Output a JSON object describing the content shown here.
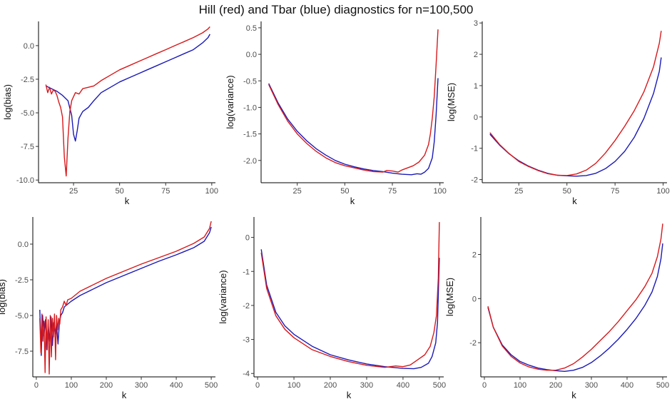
{
  "title": "Hill (red) and Tbar (blue) diagnostics for n=100,500",
  "colors": {
    "hill": "#d7191c",
    "tbar": "#1a1ab8"
  },
  "chart_data": [
    {
      "type": "line",
      "xlabel": "k",
      "ylabel": "log(bias)",
      "xlim": [
        6,
        102
      ],
      "ylim": [
        -10.2,
        1.8
      ],
      "xticks": [
        25,
        50,
        75,
        100
      ],
      "xtick_labels": [
        "25",
        "50",
        "75",
        "100"
      ],
      "yticks": [
        -10,
        -7.5,
        -5,
        -2.5,
        0
      ],
      "ytick_labels": [
        "-10.0",
        "-7.5",
        "-5.0",
        "-2.5",
        "0.0"
      ],
      "series": [
        {
          "name": "Tbar",
          "color": "#1a1ab8",
          "x": [
            10,
            13,
            16,
            19,
            22,
            24,
            25,
            26,
            27,
            28,
            30,
            33,
            36,
            40,
            45,
            50,
            55,
            60,
            65,
            70,
            75,
            80,
            85,
            90,
            95,
            98,
            99
          ],
          "y": [
            -3.0,
            -3.2,
            -3.4,
            -3.7,
            -4.1,
            -5.2,
            -6.6,
            -7.1,
            -6.3,
            -5.4,
            -4.9,
            -4.6,
            -4.1,
            -3.5,
            -3.1,
            -2.7,
            -2.4,
            -2.1,
            -1.8,
            -1.5,
            -1.2,
            -0.9,
            -0.6,
            -0.3,
            0.2,
            0.6,
            0.85
          ]
        },
        {
          "name": "Hill",
          "color": "#d7191c",
          "x": [
            10,
            11,
            12,
            13,
            14,
            15,
            16,
            17,
            18,
            19,
            20,
            21,
            22,
            23,
            24,
            26,
            28,
            30,
            33,
            36,
            40,
            45,
            50,
            55,
            60,
            65,
            70,
            75,
            80,
            85,
            90,
            95,
            98,
            99
          ],
          "y": [
            -2.9,
            -3.5,
            -3.1,
            -3.6,
            -3.3,
            -3.4,
            -3.7,
            -4.2,
            -4.6,
            -5.3,
            -8.3,
            -9.7,
            -6.9,
            -4.9,
            -4.1,
            -3.5,
            -3.6,
            -3.2,
            -3.1,
            -3.0,
            -2.6,
            -2.2,
            -1.8,
            -1.5,
            -1.2,
            -0.9,
            -0.6,
            -0.3,
            0.0,
            0.3,
            0.6,
            0.95,
            1.25,
            1.4
          ]
        }
      ]
    },
    {
      "type": "line",
      "xlabel": "k",
      "ylabel": "log(variance)",
      "xlim": [
        6,
        102
      ],
      "ylim": [
        -2.42,
        0.62
      ],
      "xticks": [
        25,
        50,
        75,
        100
      ],
      "xtick_labels": [
        "25",
        "50",
        "75",
        "100"
      ],
      "yticks": [
        -2.0,
        -1.5,
        -1.0,
        -0.5,
        0.0,
        0.5
      ],
      "ytick_labels": [
        "-2.0",
        "-1.5",
        "-1.0",
        "-0.5",
        "0.0",
        "0.5"
      ],
      "series": [
        {
          "name": "Tbar",
          "color": "#1a1ab8",
          "x": [
            10,
            15,
            20,
            25,
            30,
            35,
            40,
            45,
            50,
            55,
            60,
            65,
            70,
            75,
            80,
            85,
            88,
            90,
            92,
            94,
            96,
            97,
            98,
            99
          ],
          "y": [
            -0.55,
            -0.92,
            -1.22,
            -1.45,
            -1.63,
            -1.78,
            -1.9,
            -2.0,
            -2.07,
            -2.12,
            -2.16,
            -2.19,
            -2.21,
            -2.24,
            -2.26,
            -2.27,
            -2.25,
            -2.26,
            -2.22,
            -2.15,
            -1.95,
            -1.65,
            -1.15,
            -0.45
          ]
        },
        {
          "name": "Hill",
          "color": "#d7191c",
          "x": [
            10,
            15,
            20,
            25,
            30,
            35,
            40,
            45,
            50,
            55,
            60,
            65,
            70,
            72,
            75,
            78,
            80,
            83,
            86,
            89,
            92,
            94,
            95,
            96,
            97,
            98,
            99
          ],
          "y": [
            -0.57,
            -0.95,
            -1.26,
            -1.5,
            -1.68,
            -1.83,
            -1.95,
            -2.04,
            -2.1,
            -2.14,
            -2.18,
            -2.21,
            -2.22,
            -2.19,
            -2.2,
            -2.22,
            -2.18,
            -2.14,
            -2.1,
            -2.03,
            -1.9,
            -1.7,
            -1.5,
            -1.2,
            -0.8,
            -0.2,
            0.47
          ]
        }
      ]
    },
    {
      "type": "line",
      "xlabel": "k",
      "ylabel": "log(MSE)",
      "xlim": [
        6,
        102
      ],
      "ylim": [
        -2.1,
        3.05
      ],
      "xticks": [
        25,
        50,
        75,
        100
      ],
      "xtick_labels": [
        "25",
        "50",
        "75",
        "100"
      ],
      "yticks": [
        -2,
        -1,
        0,
        1,
        2,
        3
      ],
      "ytick_labels": [
        "-2",
        "-1",
        "0",
        "1",
        "2",
        "3"
      ],
      "series": [
        {
          "name": "Tbar",
          "color": "#1a1ab8",
          "x": [
            10,
            15,
            20,
            25,
            30,
            35,
            40,
            45,
            50,
            55,
            60,
            65,
            70,
            75,
            80,
            85,
            90,
            95,
            98,
            99
          ],
          "y": [
            -0.55,
            -0.9,
            -1.18,
            -1.4,
            -1.57,
            -1.7,
            -1.8,
            -1.86,
            -1.88,
            -1.89,
            -1.87,
            -1.8,
            -1.65,
            -1.42,
            -1.1,
            -0.65,
            -0.05,
            0.75,
            1.45,
            1.9
          ]
        },
        {
          "name": "Hill",
          "color": "#d7191c",
          "x": [
            10,
            15,
            20,
            25,
            30,
            35,
            40,
            45,
            50,
            55,
            60,
            65,
            70,
            75,
            80,
            85,
            90,
            95,
            98,
            99
          ],
          "y": [
            -0.5,
            -0.88,
            -1.17,
            -1.42,
            -1.58,
            -1.71,
            -1.81,
            -1.86,
            -1.87,
            -1.82,
            -1.7,
            -1.48,
            -1.15,
            -0.75,
            -0.3,
            0.2,
            0.8,
            1.6,
            2.35,
            2.75
          ]
        }
      ]
    },
    {
      "type": "line",
      "xlabel": "k",
      "ylabel": "log(bias)",
      "xlim": [
        -10,
        512
      ],
      "ylim": [
        -9.3,
        1.9
      ],
      "xticks": [
        0,
        100,
        200,
        300,
        400,
        500
      ],
      "xtick_labels": [
        "0",
        "100",
        "200",
        "300",
        "400",
        "500"
      ],
      "yticks": [
        -7.5,
        -5.0,
        -2.5,
        0.0
      ],
      "ytick_labels": [
        "-7.5",
        "-5.0",
        "-2.5",
        "0.0"
      ],
      "series": [
        {
          "name": "Tbar",
          "color": "#1a1ab8",
          "x": [
            10,
            14,
            18,
            22,
            26,
            30,
            34,
            38,
            42,
            46,
            50,
            54,
            58,
            62,
            66,
            70,
            75,
            80,
            90,
            100,
            125,
            150,
            200,
            250,
            300,
            350,
            400,
            450,
            480,
            495,
            500
          ],
          "y": [
            -4.6,
            -7.8,
            -5.0,
            -6.4,
            -5.3,
            -7.4,
            -5.6,
            -6.8,
            -5.1,
            -7.1,
            -5.5,
            -6.3,
            -5.6,
            -7.0,
            -5.5,
            -5.0,
            -4.8,
            -4.4,
            -4.2,
            -4.0,
            -3.6,
            -3.3,
            -2.7,
            -2.2,
            -1.7,
            -1.2,
            -0.75,
            -0.25,
            0.2,
            0.8,
            1.2
          ]
        },
        {
          "name": "Hill",
          "color": "#d7191c",
          "x": [
            10,
            13,
            16,
            19,
            22,
            25,
            28,
            31,
            34,
            37,
            40,
            43,
            46,
            49,
            52,
            55,
            58,
            61,
            64,
            67,
            70,
            75,
            80,
            85,
            90,
            100,
            125,
            150,
            200,
            250,
            300,
            350,
            400,
            450,
            480,
            495,
            500
          ],
          "y": [
            -5.2,
            -7.6,
            -4.9,
            -6.8,
            -5.4,
            -9.0,
            -5.1,
            -7.4,
            -5.3,
            -9.1,
            -5.0,
            -7.9,
            -5.2,
            -6.5,
            -4.9,
            -8.1,
            -5.0,
            -6.0,
            -5.2,
            -5.6,
            -4.6,
            -4.4,
            -4.0,
            -4.3,
            -3.9,
            -3.8,
            -3.3,
            -3.0,
            -2.4,
            -1.9,
            -1.4,
            -0.95,
            -0.5,
            0.05,
            0.5,
            1.1,
            1.6
          ]
        }
      ]
    },
    {
      "type": "line",
      "xlabel": "k",
      "ylabel": "log(variance)",
      "xlim": [
        -10,
        512
      ],
      "ylim": [
        -4.1,
        0.6
      ],
      "xticks": [
        0,
        100,
        200,
        300,
        400,
        500
      ],
      "xtick_labels": [
        "0",
        "100",
        "200",
        "300",
        "400",
        "500"
      ],
      "yticks": [
        -4,
        -3,
        -2,
        -1,
        0
      ],
      "ytick_labels": [
        "-4",
        "-3",
        "-2",
        "-1",
        "0"
      ],
      "series": [
        {
          "name": "Tbar",
          "color": "#1a1ab8",
          "x": [
            10,
            25,
            50,
            75,
            100,
            150,
            200,
            250,
            300,
            350,
            400,
            430,
            450,
            470,
            480,
            490,
            495,
            500
          ],
          "y": [
            -0.35,
            -1.4,
            -2.2,
            -2.6,
            -2.85,
            -3.2,
            -3.45,
            -3.6,
            -3.72,
            -3.8,
            -3.85,
            -3.86,
            -3.82,
            -3.7,
            -3.5,
            -3.1,
            -2.5,
            -0.6
          ]
        },
        {
          "name": "Hill",
          "color": "#d7191c",
          "x": [
            10,
            25,
            50,
            75,
            100,
            150,
            200,
            250,
            300,
            350,
            380,
            400,
            420,
            440,
            460,
            475,
            485,
            492,
            497,
            500
          ],
          "y": [
            -0.45,
            -1.5,
            -2.3,
            -2.7,
            -2.95,
            -3.3,
            -3.5,
            -3.65,
            -3.76,
            -3.82,
            -3.78,
            -3.8,
            -3.75,
            -3.6,
            -3.45,
            -3.2,
            -2.8,
            -2.3,
            -1.2,
            0.45
          ]
        }
      ]
    },
    {
      "type": "line",
      "xlabel": "k",
      "ylabel": "log(MSE)",
      "xlim": [
        -10,
        512
      ],
      "ylim": [
        -3.55,
        3.7
      ],
      "xticks": [
        0,
        100,
        200,
        300,
        400,
        500
      ],
      "xtick_labels": [
        "0",
        "100",
        "200",
        "300",
        "400",
        "500"
      ],
      "yticks": [
        -2,
        0,
        2
      ],
      "ytick_labels": [
        "-2",
        "0",
        "2"
      ],
      "series": [
        {
          "name": "Tbar",
          "color": "#1a1ab8",
          "x": [
            10,
            25,
            50,
            75,
            100,
            125,
            150,
            175,
            200,
            225,
            250,
            275,
            300,
            325,
            350,
            375,
            400,
            425,
            450,
            470,
            485,
            495,
            500
          ],
          "y": [
            -0.4,
            -1.3,
            -2.1,
            -2.55,
            -2.85,
            -3.02,
            -3.15,
            -3.22,
            -3.27,
            -3.3,
            -3.25,
            -3.12,
            -2.9,
            -2.6,
            -2.25,
            -1.85,
            -1.4,
            -0.9,
            -0.3,
            0.3,
            1.0,
            1.8,
            2.5
          ]
        },
        {
          "name": "Hill",
          "color": "#d7191c",
          "x": [
            10,
            25,
            50,
            75,
            100,
            125,
            150,
            175,
            200,
            225,
            250,
            275,
            300,
            325,
            350,
            375,
            400,
            425,
            450,
            470,
            485,
            495,
            500
          ],
          "y": [
            -0.35,
            -1.3,
            -2.15,
            -2.62,
            -2.92,
            -3.1,
            -3.2,
            -3.25,
            -3.25,
            -3.15,
            -2.95,
            -2.65,
            -2.3,
            -1.9,
            -1.5,
            -1.05,
            -0.55,
            -0.05,
            0.55,
            1.15,
            1.9,
            2.7,
            3.4
          ]
        }
      ]
    }
  ]
}
